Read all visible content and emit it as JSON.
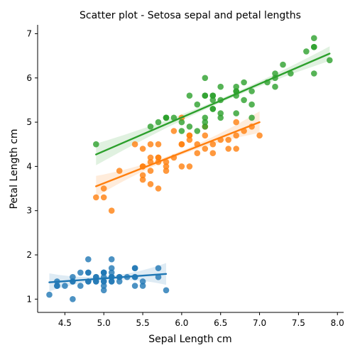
{
  "chart_data": {
    "type": "scatter",
    "title": "Scatter plot - Setosa sepal and petal lengths",
    "xlabel": "Sepal Length cm",
    "ylabel": "Petal Length cm",
    "xlim": [
      4.15,
      8.08
    ],
    "ylim": [
      0.7,
      7.2
    ],
    "xticks": [
      4.5,
      5.0,
      5.5,
      6.0,
      6.5,
      7.0,
      7.5,
      8.0
    ],
    "xtick_labels": [
      "4.5",
      "5.0",
      "5.5",
      "6.0",
      "6.5",
      "7.0",
      "7.5",
      "8.0"
    ],
    "yticks": [
      1,
      2,
      3,
      4,
      5,
      6,
      7
    ],
    "ytick_labels": [
      "1",
      "2",
      "3",
      "4",
      "5",
      "6",
      "7"
    ],
    "grid": false,
    "legend": "none",
    "series": [
      {
        "color": "#1f77b4",
        "regression": {
          "x": [
            4.3,
            5.8
          ],
          "y": [
            1.38,
            1.57
          ]
        },
        "points": [
          [
            5.1,
            1.4
          ],
          [
            4.9,
            1.4
          ],
          [
            4.7,
            1.3
          ],
          [
            4.6,
            1.5
          ],
          [
            5.0,
            1.4
          ],
          [
            5.4,
            1.7
          ],
          [
            4.6,
            1.4
          ],
          [
            5.0,
            1.5
          ],
          [
            4.4,
            1.4
          ],
          [
            4.9,
            1.5
          ],
          [
            5.4,
            1.5
          ],
          [
            4.8,
            1.6
          ],
          [
            4.8,
            1.4
          ],
          [
            4.3,
            1.1
          ],
          [
            5.8,
            1.2
          ],
          [
            5.7,
            1.5
          ],
          [
            5.4,
            1.3
          ],
          [
            5.1,
            1.4
          ],
          [
            5.7,
            1.7
          ],
          [
            5.1,
            1.5
          ],
          [
            5.4,
            1.7
          ],
          [
            5.1,
            1.5
          ],
          [
            4.6,
            1.0
          ],
          [
            5.1,
            1.7
          ],
          [
            4.8,
            1.9
          ],
          [
            5.0,
            1.6
          ],
          [
            5.0,
            1.6
          ],
          [
            5.2,
            1.5
          ],
          [
            5.2,
            1.4
          ],
          [
            4.7,
            1.6
          ],
          [
            4.8,
            1.6
          ],
          [
            5.4,
            1.5
          ],
          [
            5.2,
            1.5
          ],
          [
            5.5,
            1.4
          ],
          [
            4.9,
            1.5
          ],
          [
            5.0,
            1.2
          ],
          [
            5.5,
            1.3
          ],
          [
            4.9,
            1.4
          ],
          [
            4.4,
            1.3
          ],
          [
            5.1,
            1.5
          ],
          [
            5.0,
            1.3
          ],
          [
            4.5,
            1.3
          ],
          [
            4.4,
            1.3
          ],
          [
            5.0,
            1.6
          ],
          [
            5.1,
            1.9
          ],
          [
            4.8,
            1.4
          ],
          [
            5.1,
            1.6
          ],
          [
            4.6,
            1.4
          ],
          [
            5.3,
            1.5
          ],
          [
            5.0,
            1.4
          ]
        ]
      },
      {
        "color": "#ff7f0e",
        "regression": {
          "x": [
            4.9,
            7.0
          ],
          "y": [
            3.55,
            5.0
          ]
        },
        "points": [
          [
            7.0,
            4.7
          ],
          [
            6.4,
            4.5
          ],
          [
            6.9,
            4.9
          ],
          [
            5.5,
            4.0
          ],
          [
            6.5,
            4.6
          ],
          [
            5.7,
            4.5
          ],
          [
            6.3,
            4.7
          ],
          [
            4.9,
            3.3
          ],
          [
            6.6,
            4.6
          ],
          [
            5.2,
            3.9
          ],
          [
            5.0,
            3.5
          ],
          [
            5.9,
            4.2
          ],
          [
            6.0,
            4.0
          ],
          [
            6.1,
            4.7
          ],
          [
            5.6,
            3.6
          ],
          [
            6.7,
            4.4
          ],
          [
            5.6,
            4.5
          ],
          [
            5.8,
            4.1
          ],
          [
            6.2,
            4.5
          ],
          [
            5.6,
            3.9
          ],
          [
            5.9,
            4.8
          ],
          [
            6.1,
            4.0
          ],
          [
            6.3,
            4.9
          ],
          [
            6.1,
            4.7
          ],
          [
            6.4,
            4.3
          ],
          [
            6.6,
            4.4
          ],
          [
            6.8,
            4.8
          ],
          [
            6.7,
            5.0
          ],
          [
            6.0,
            4.5
          ],
          [
            5.7,
            3.5
          ],
          [
            5.5,
            3.8
          ],
          [
            5.5,
            3.7
          ],
          [
            5.8,
            3.9
          ],
          [
            6.0,
            5.1
          ],
          [
            5.4,
            4.5
          ],
          [
            6.0,
            4.5
          ],
          [
            6.7,
            4.7
          ],
          [
            6.3,
            4.4
          ],
          [
            5.6,
            4.1
          ],
          [
            5.5,
            4.0
          ],
          [
            5.5,
            4.4
          ],
          [
            6.1,
            4.6
          ],
          [
            5.8,
            4.0
          ],
          [
            5.0,
            3.3
          ],
          [
            5.6,
            4.2
          ],
          [
            5.7,
            4.2
          ],
          [
            5.7,
            4.2
          ],
          [
            6.2,
            4.3
          ],
          [
            5.1,
            3.0
          ],
          [
            5.7,
            4.1
          ]
        ]
      },
      {
        "color": "#2ca02c",
        "regression": {
          "x": [
            4.9,
            7.9
          ],
          "y": [
            4.27,
            6.55
          ]
        },
        "points": [
          [
            6.3,
            6.0
          ],
          [
            5.8,
            5.1
          ],
          [
            7.1,
            5.9
          ],
          [
            6.3,
            5.6
          ],
          [
            6.5,
            5.8
          ],
          [
            7.6,
            6.6
          ],
          [
            4.9,
            4.5
          ],
          [
            7.3,
            6.3
          ],
          [
            6.7,
            5.8
          ],
          [
            7.2,
            6.1
          ],
          [
            6.5,
            5.1
          ],
          [
            6.4,
            5.3
          ],
          [
            6.8,
            5.5
          ],
          [
            5.7,
            5.0
          ],
          [
            5.8,
            5.1
          ],
          [
            6.4,
            5.3
          ],
          [
            6.5,
            5.5
          ],
          [
            7.7,
            6.7
          ],
          [
            7.7,
            6.9
          ],
          [
            6.0,
            5.0
          ],
          [
            6.9,
            5.7
          ],
          [
            5.6,
            4.9
          ],
          [
            7.7,
            6.7
          ],
          [
            6.3,
            4.9
          ],
          [
            6.7,
            5.7
          ],
          [
            7.2,
            6.0
          ],
          [
            6.2,
            4.8
          ],
          [
            6.1,
            4.9
          ],
          [
            6.4,
            5.6
          ],
          [
            7.2,
            5.8
          ],
          [
            7.4,
            6.1
          ],
          [
            7.9,
            6.4
          ],
          [
            6.4,
            5.6
          ],
          [
            6.3,
            5.1
          ],
          [
            6.1,
            5.6
          ],
          [
            7.7,
            6.1
          ],
          [
            6.3,
            5.6
          ],
          [
            6.4,
            5.5
          ],
          [
            6.0,
            4.8
          ],
          [
            6.9,
            5.4
          ],
          [
            6.7,
            5.6
          ],
          [
            6.9,
            5.1
          ],
          [
            5.8,
            5.1
          ],
          [
            6.8,
            5.9
          ],
          [
            6.7,
            5.7
          ],
          [
            6.7,
            5.2
          ],
          [
            6.3,
            5.0
          ],
          [
            6.5,
            5.2
          ],
          [
            6.2,
            5.4
          ],
          [
            5.9,
            5.1
          ]
        ]
      }
    ]
  }
}
